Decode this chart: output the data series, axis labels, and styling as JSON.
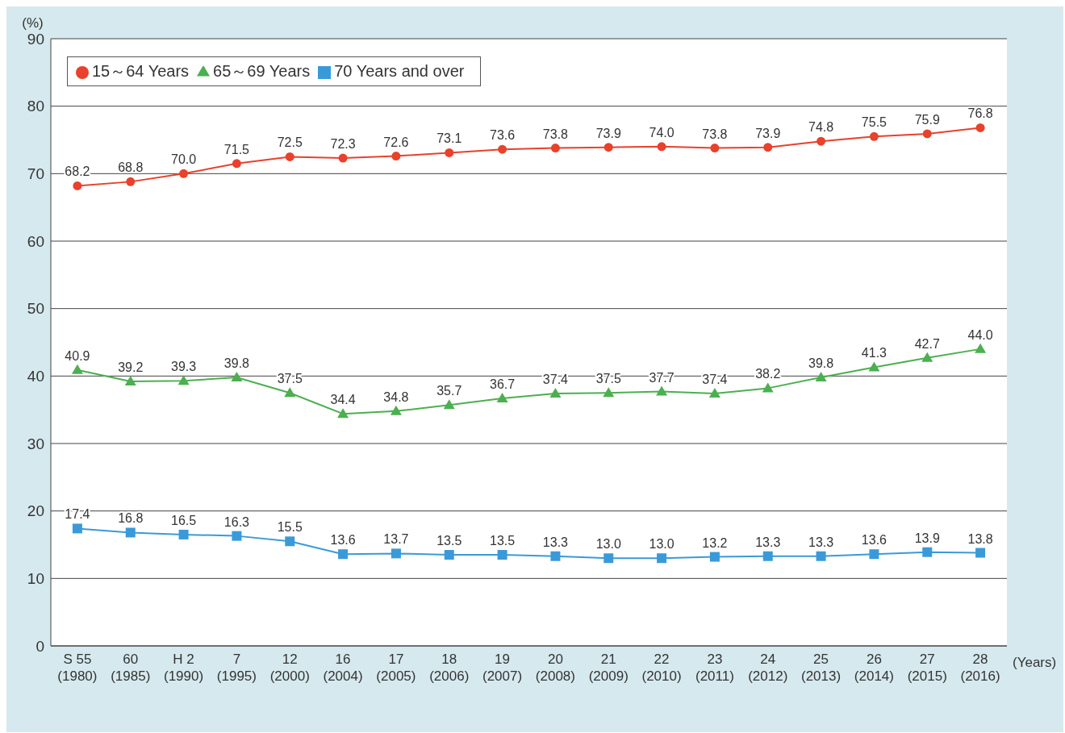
{
  "chart_data": {
    "type": "line",
    "ylabel": "(%)",
    "xlabel": "(Years)",
    "categories": [
      "S 55\n(1980)",
      "60\n(1985)",
      "H 2\n(1990)",
      "7\n(1995)",
      "12\n(2000)",
      "16\n(2004)",
      "17\n(2005)",
      "18\n(2006)",
      "19\n(2007)",
      "20\n(2008)",
      "21\n(2009)",
      "22\n(2010)",
      "23\n(2011)",
      "24\n(2012)",
      "25\n(2013)",
      "26\n(2014)",
      "27\n(2015)",
      "28\n(2016)"
    ],
    "series": [
      {
        "name": "15～64 Years",
        "color": "#e8412c",
        "marker": "circle",
        "values": [
          68.2,
          68.8,
          70.0,
          71.5,
          72.5,
          72.3,
          72.6,
          73.1,
          73.6,
          73.8,
          73.9,
          74.0,
          73.8,
          73.9,
          74.8,
          75.5,
          75.9,
          76.8
        ],
        "value_labels": [
          "68.2",
          "68.8",
          "70.0",
          "71.5",
          "72.5",
          "72.3",
          "72.6",
          "73.1",
          "73.6",
          "73.8",
          "73.9",
          "74.0",
          "73.8",
          "73.9",
          "74.8",
          "75.5",
          "75.9",
          "76.8"
        ]
      },
      {
        "name": "65～69 Years",
        "color": "#4caf50",
        "marker": "triangle",
        "values": [
          40.9,
          39.2,
          39.3,
          39.8,
          37.5,
          34.4,
          34.8,
          35.7,
          36.7,
          37.4,
          37.5,
          37.7,
          37.4,
          38.2,
          39.8,
          41.3,
          42.7,
          44.0
        ],
        "value_labels": [
          "40.9",
          "39.2",
          "39.3",
          "39.8",
          "37.5",
          "34.4",
          "34.8",
          "35.7",
          "36.7",
          "37.4",
          "37.5",
          "37.7",
          "37.4",
          "38.2",
          "39.8",
          "41.3",
          "42.7",
          "44.0"
        ]
      },
      {
        "name": "70 Years and over",
        "color": "#3a9ad9",
        "marker": "square",
        "values": [
          17.4,
          16.8,
          16.5,
          16.3,
          15.5,
          13.6,
          13.7,
          13.5,
          13.5,
          13.3,
          13.0,
          13.0,
          13.2,
          13.3,
          13.3,
          13.6,
          13.9,
          13.8
        ],
        "value_labels": [
          "17.4",
          "16.8",
          "16.5",
          "16.3",
          "15.5",
          "13.6",
          "13.7",
          "13.5",
          "13.5",
          "13.3",
          "13.0",
          "13.0",
          "13.2",
          "13.3",
          "13.3",
          "13.6",
          "13.9",
          "13.8"
        ]
      }
    ],
    "ylim": [
      0,
      90
    ],
    "yticks": [
      0,
      10,
      20,
      30,
      40,
      50,
      60,
      70,
      80,
      90
    ],
    "grid": "y",
    "legend": "top left"
  }
}
